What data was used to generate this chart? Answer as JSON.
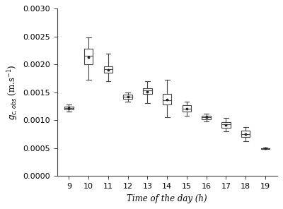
{
  "boxes": [
    {
      "time": 9,
      "q1": 0.00119,
      "median": 0.00122,
      "q3": 0.00125,
      "whisker_low": 0.00116,
      "whisker_high": 0.00128,
      "mean": 0.00122
    },
    {
      "time": 10,
      "q1": 0.002,
      "median": 0.00215,
      "q3": 0.00228,
      "whisker_low": 0.00173,
      "whisker_high": 0.00248,
      "mean": 0.00213
    },
    {
      "time": 11,
      "q1": 0.00185,
      "median": 0.00191,
      "q3": 0.00197,
      "whisker_low": 0.0017,
      "whisker_high": 0.0022,
      "mean": 0.0019
    },
    {
      "time": 12,
      "q1": 0.00138,
      "median": 0.00142,
      "q3": 0.00146,
      "whisker_low": 0.00133,
      "whisker_high": 0.0015,
      "mean": 0.00142
    },
    {
      "time": 13,
      "q1": 0.00147,
      "median": 0.00153,
      "q3": 0.00158,
      "whisker_low": 0.00131,
      "whisker_high": 0.0017,
      "mean": 0.00151
    },
    {
      "time": 14,
      "q1": 0.00128,
      "median": 0.00136,
      "q3": 0.00147,
      "whisker_low": 0.00105,
      "whisker_high": 0.00172,
      "mean": 0.00137
    },
    {
      "time": 15,
      "q1": 0.00116,
      "median": 0.00121,
      "q3": 0.00127,
      "whisker_low": 0.00108,
      "whisker_high": 0.00133,
      "mean": 0.00121
    },
    {
      "time": 16,
      "q1": 0.00102,
      "median": 0.00105,
      "q3": 0.00108,
      "whisker_low": 0.00098,
      "whisker_high": 0.00112,
      "mean": 0.00105
    },
    {
      "time": 17,
      "q1": 0.00087,
      "median": 0.00093,
      "q3": 0.00097,
      "whisker_low": 0.0008,
      "whisker_high": 0.00104,
      "mean": 0.00092
    },
    {
      "time": 18,
      "q1": 0.0007,
      "median": 0.00075,
      "q3": 0.00081,
      "whisker_low": 0.00062,
      "whisker_high": 0.00088,
      "mean": 0.00075
    },
    {
      "time": 19,
      "q1": 0.00049,
      "median": 0.000495,
      "q3": 0.0005,
      "whisker_low": 0.000485,
      "whisker_high": 0.000505,
      "mean": 0.000495
    }
  ],
  "ylabel": "$g_{c,obs}$ (m.s$^{-1}$)",
  "xlabel": "Time of the day (h)",
  "ylim": [
    0.0,
    0.003
  ],
  "yticks": [
    0.0,
    0.0005,
    0.001,
    0.0015,
    0.002,
    0.0025,
    0.003
  ],
  "xticks": [
    9,
    10,
    11,
    12,
    13,
    14,
    15,
    16,
    17,
    18,
    19
  ],
  "box_facecolor": "white",
  "box_edge_color": "#444444",
  "whisker_color": "#444444",
  "mean_color": "#222222",
  "background_color": "white",
  "box_width": 0.45,
  "cap_ratio": 0.55,
  "linewidth": 0.8
}
